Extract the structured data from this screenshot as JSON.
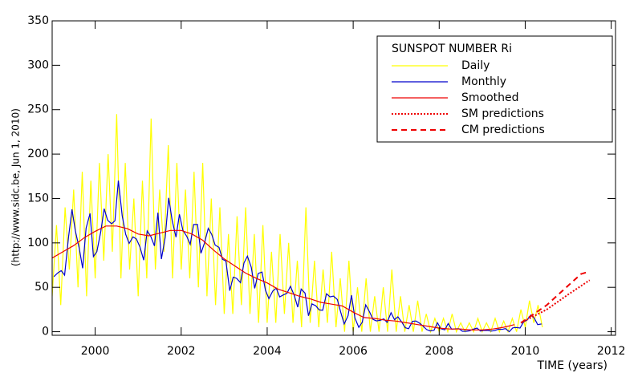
{
  "chart_data": {
    "type": "line",
    "legend_title": "SUNSPOT NUMBER Ri",
    "side_note": "(http://www.sidc.be, Jun  1, 2010)",
    "x_label": "TIME (years)",
    "xlim": [
      1999,
      2012.1
    ],
    "xticks": [
      2000,
      2002,
      2004,
      2006,
      2008,
      2010,
      2012
    ],
    "ylim": [
      -4,
      350
    ],
    "yticks": [
      0,
      50,
      100,
      150,
      200,
      250,
      300,
      350
    ],
    "legend": "upper right",
    "series": [
      {
        "name": "Daily",
        "color": "#ffff00",
        "style": "solid",
        "x": [
          1999.0,
          1999.1,
          1999.2,
          1999.3,
          1999.4,
          1999.5,
          1999.6,
          1999.7,
          1999.8,
          1999.9,
          2000.0,
          2000.1,
          2000.2,
          2000.3,
          2000.4,
          2000.5,
          2000.6,
          2000.7,
          2000.8,
          2000.9,
          2001.0,
          2001.1,
          2001.2,
          2001.3,
          2001.4,
          2001.5,
          2001.6,
          2001.7,
          2001.8,
          2001.9,
          2002.0,
          2002.1,
          2002.2,
          2002.3,
          2002.4,
          2002.5,
          2002.6,
          2002.7,
          2002.8,
          2002.9,
          2003.0,
          2003.1,
          2003.2,
          2003.3,
          2003.4,
          2003.5,
          2003.6,
          2003.7,
          2003.8,
          2003.9,
          2004.0,
          2004.1,
          2004.2,
          2004.3,
          2004.4,
          2004.5,
          2004.6,
          2004.7,
          2004.8,
          2004.9,
          2005.0,
          2005.1,
          2005.2,
          2005.3,
          2005.4,
          2005.5,
          2005.6,
          2005.7,
          2005.8,
          2005.9,
          2006.0,
          2006.1,
          2006.2,
          2006.3,
          2006.4,
          2006.5,
          2006.6,
          2006.7,
          2006.8,
          2006.9,
          2007.0,
          2007.1,
          2007.2,
          2007.3,
          2007.4,
          2007.5,
          2007.6,
          2007.7,
          2007.8,
          2007.9,
          2008.0,
          2008.1,
          2008.2,
          2008.3,
          2008.4,
          2008.5,
          2008.6,
          2008.7,
          2008.8,
          2008.9,
          2009.0,
          2009.1,
          2009.2,
          2009.3,
          2009.4,
          2009.5,
          2009.6,
          2009.7,
          2009.8,
          2009.9,
          2010.0,
          2010.1,
          2010.2,
          2010.3,
          2010.4
        ],
        "values": [
          40,
          120,
          30,
          140,
          70,
          160,
          50,
          180,
          40,
          170,
          60,
          190,
          80,
          200,
          90,
          245,
          60,
          190,
          70,
          150,
          40,
          170,
          60,
          240,
          70,
          160,
          90,
          210,
          60,
          190,
          70,
          160,
          60,
          180,
          50,
          190,
          40,
          150,
          30,
          140,
          20,
          110,
          20,
          130,
          30,
          140,
          20,
          110,
          10,
          120,
          10,
          90,
          10,
          110,
          20,
          100,
          10,
          80,
          5,
          140,
          10,
          80,
          5,
          70,
          10,
          90,
          5,
          60,
          0,
          80,
          0,
          50,
          0,
          60,
          0,
          40,
          0,
          50,
          0,
          70,
          0,
          40,
          0,
          30,
          0,
          35,
          0,
          20,
          0,
          15,
          0,
          15,
          0,
          20,
          0,
          10,
          0,
          10,
          0,
          15,
          0,
          10,
          0,
          15,
          0,
          12,
          0,
          15,
          0,
          25,
          5,
          35,
          10,
          30,
          5
        ]
      },
      {
        "name": "Monthly",
        "color": "#0000cc",
        "style": "solid",
        "x": [
          1999.04,
          1999.13,
          1999.21,
          1999.29,
          1999.38,
          1999.46,
          1999.54,
          1999.63,
          1999.71,
          1999.79,
          1999.88,
          1999.96,
          2000.04,
          2000.13,
          2000.21,
          2000.29,
          2000.38,
          2000.46,
          2000.54,
          2000.63,
          2000.71,
          2000.79,
          2000.88,
          2000.96,
          2001.04,
          2001.13,
          2001.21,
          2001.29,
          2001.38,
          2001.46,
          2001.54,
          2001.63,
          2001.71,
          2001.79,
          2001.88,
          2001.96,
          2002.04,
          2002.13,
          2002.21,
          2002.29,
          2002.38,
          2002.46,
          2002.54,
          2002.63,
          2002.71,
          2002.79,
          2002.88,
          2002.96,
          2003.04,
          2003.13,
          2003.21,
          2003.29,
          2003.38,
          2003.46,
          2003.54,
          2003.63,
          2003.71,
          2003.79,
          2003.88,
          2003.96,
          2004.04,
          2004.13,
          2004.21,
          2004.29,
          2004.38,
          2004.46,
          2004.54,
          2004.63,
          2004.71,
          2004.79,
          2004.88,
          2004.96,
          2005.04,
          2005.13,
          2005.21,
          2005.29,
          2005.38,
          2005.46,
          2005.54,
          2005.63,
          2005.71,
          2005.79,
          2005.88,
          2005.96,
          2006.04,
          2006.13,
          2006.21,
          2006.29,
          2006.38,
          2006.46,
          2006.54,
          2006.63,
          2006.71,
          2006.79,
          2006.88,
          2006.96,
          2007.04,
          2007.13,
          2007.21,
          2007.29,
          2007.38,
          2007.46,
          2007.54,
          2007.63,
          2007.71,
          2007.79,
          2007.88,
          2007.96,
          2008.04,
          2008.13,
          2008.21,
          2008.29,
          2008.38,
          2008.46,
          2008.54,
          2008.63,
          2008.71,
          2008.79,
          2008.88,
          2008.96,
          2009.04,
          2009.13,
          2009.21,
          2009.29,
          2009.38,
          2009.46,
          2009.54,
          2009.63,
          2009.71,
          2009.79,
          2009.88,
          2009.96,
          2010.04,
          2010.13,
          2010.21,
          2010.29,
          2010.38
        ],
        "values": [
          62.0,
          66.3,
          68.8,
          63.7,
          106.4,
          137.7,
          113.5,
          93.7,
          71.5,
          116.7,
          133.2,
          84.6,
          90.1,
          112.9,
          138.5,
          125.5,
          121.6,
          124.9,
          170.1,
          130.5,
          109.7,
          99.4,
          106.8,
          104.4,
          95.6,
          80.6,
          113.5,
          107.7,
          96.6,
          134.0,
          81.8,
          106.4,
          150.7,
          125.5,
          106.5,
          132.2,
          114.1,
          107.4,
          98.4,
          120.7,
          120.8,
          88.3,
          99.6,
          116.4,
          109.6,
          97.5,
          95.0,
          81.6,
          79.5,
          46.2,
          61.5,
          60.0,
          55.2,
          77.4,
          85.0,
          72.7,
          48.8,
          65.6,
          67.2,
          46.7,
          37.3,
          45.8,
          49.1,
          39.3,
          41.5,
          43.2,
          51.1,
          40.9,
          27.7,
          48.0,
          43.5,
          17.9,
          31.3,
          29.2,
          24.5,
          24.2,
          42.7,
          39.3,
          40.1,
          36.4,
          21.9,
          8.7,
          18.0,
          41.1,
          15.3,
          4.9,
          10.6,
          30.2,
          22.3,
          13.9,
          12.2,
          12.9,
          14.4,
          10.5,
          21.4,
          13.6,
          16.8,
          10.7,
          4.5,
          3.4,
          11.7,
          12.1,
          9.7,
          6.0,
          2.4,
          0.9,
          1.7,
          10.1,
          3.3,
          2.1,
          9.3,
          2.9,
          3.2,
          3.4,
          0.5,
          0.5,
          1.1,
          2.9,
          4.1,
          0.8,
          1.5,
          1.4,
          0.7,
          1.2,
          2.9,
          2.6,
          3.5,
          0.0,
          4.3,
          4.8,
          4.1,
          10.8,
          13.2,
          18.8,
          15.4,
          8.0,
          8.7
        ]
      },
      {
        "name": "Smoothed",
        "color": "#ee0000",
        "style": "solid",
        "x": [
          1999.0,
          1999.25,
          1999.5,
          1999.75,
          2000.0,
          2000.25,
          2000.5,
          2000.75,
          2001.0,
          2001.25,
          2001.5,
          2001.75,
          2002.0,
          2002.25,
          2002.5,
          2002.75,
          2003.0,
          2003.25,
          2003.5,
          2003.75,
          2004.0,
          2004.25,
          2004.5,
          2004.75,
          2005.0,
          2005.25,
          2005.5,
          2005.75,
          2006.0,
          2006.25,
          2006.5,
          2006.75,
          2007.0,
          2007.25,
          2007.5,
          2007.75,
          2008.0,
          2008.25,
          2008.5,
          2008.75,
          2009.0,
          2009.25,
          2009.5,
          2009.75
        ],
        "values": [
          83,
          90,
          97,
          106,
          113,
          119,
          119,
          116,
          110,
          108,
          111,
          114,
          114,
          110,
          103,
          92,
          82,
          74,
          66,
          60,
          55,
          48,
          44,
          40,
          37,
          33,
          31,
          29,
          22,
          16,
          15,
          13,
          12,
          10,
          8,
          6,
          4,
          3,
          3,
          2,
          2,
          3,
          5,
          8
        ]
      },
      {
        "name": "SM predictions",
        "color": "#ee0000",
        "style": "dotted",
        "x": [
          2009.9,
          2010.5,
          2011,
          2011.5
        ],
        "values": [
          10,
          25,
          42,
          58
        ]
      },
      {
        "name": "CM predictions",
        "color": "#ee0000",
        "style": "dashed",
        "x": [
          2009.9,
          2010.5,
          2011,
          2011.3,
          2011.5
        ],
        "values": [
          10,
          30,
          52,
          65,
          68
        ]
      }
    ]
  }
}
